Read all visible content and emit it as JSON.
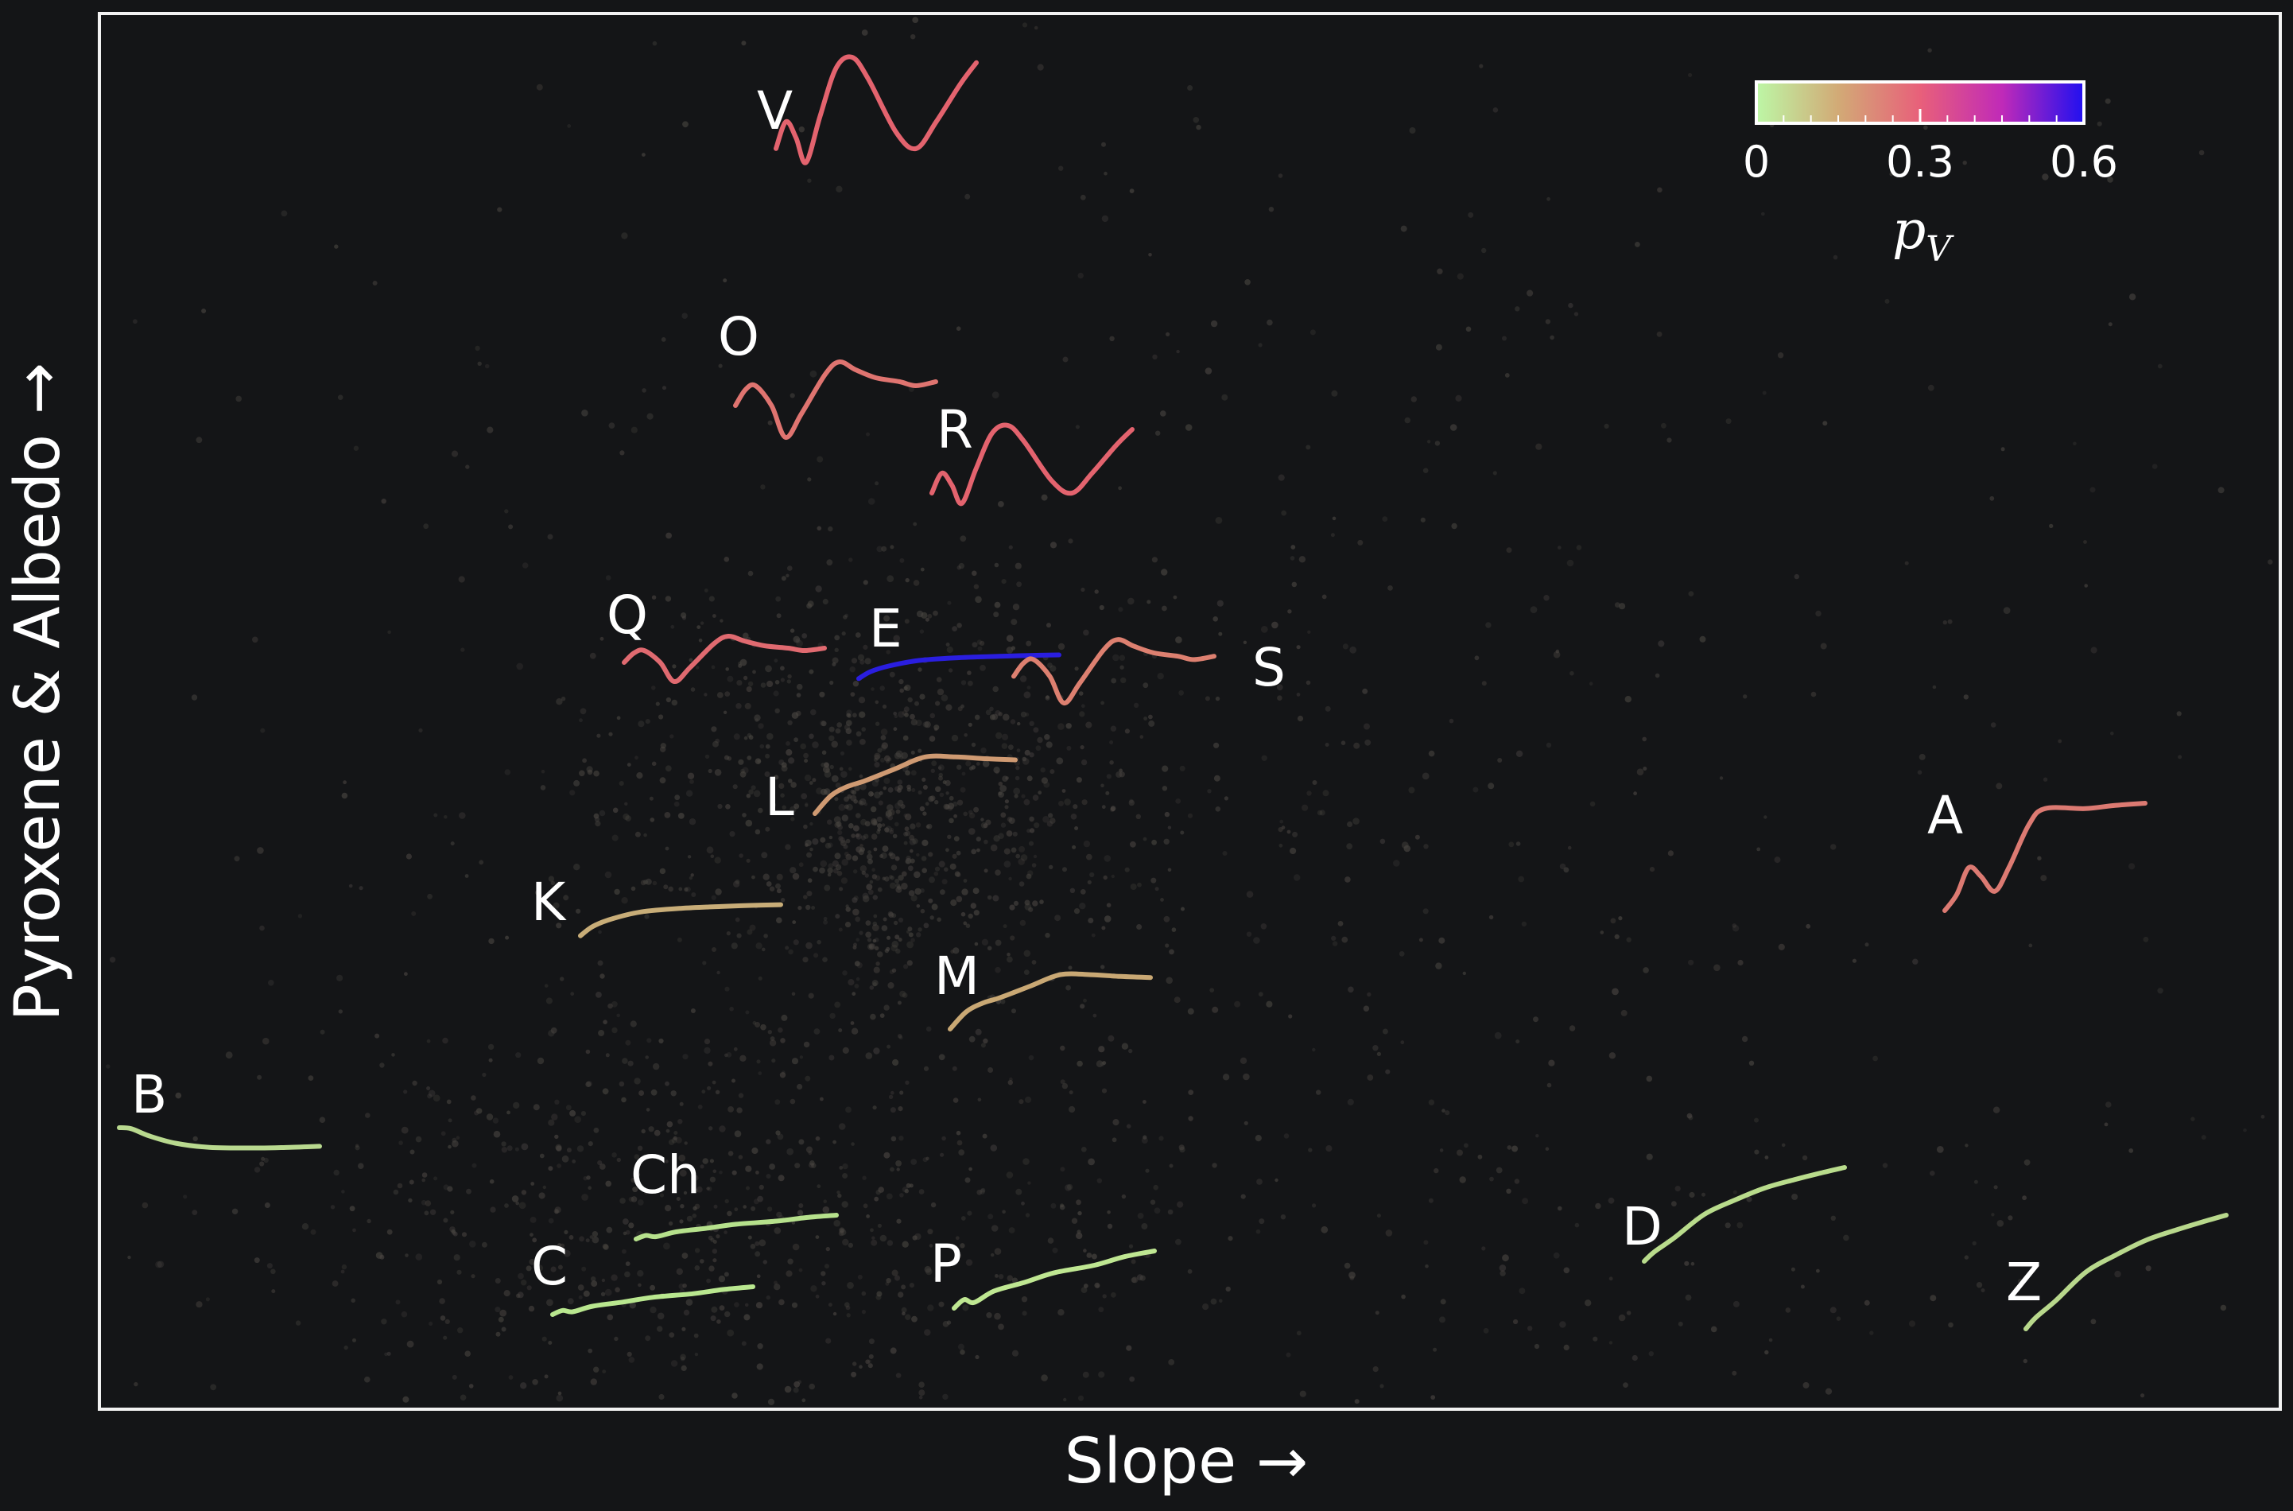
{
  "chart_data": {
    "type": "scatter",
    "title": "",
    "xlabel": "Slope →",
    "ylabel": "Pyroxene & Albedo →",
    "grid": false,
    "ticks": false,
    "colorbar": {
      "label": "p",
      "label_sub": "V",
      "min": 0,
      "max": 0.6,
      "tick_labels": [
        "0",
        "0.3",
        "0.6"
      ],
      "tick_values": [
        0,
        0.3,
        0.6
      ],
      "minor_ticks": [
        0.05,
        0.1,
        0.15,
        0.2,
        0.25,
        0.35,
        0.4,
        0.45,
        0.5,
        0.55
      ],
      "colors": [
        "#bdf7a6",
        "#d2aa76",
        "#e8607a",
        "#c02ab8",
        "#2010f0"
      ],
      "placement": "top-right"
    },
    "background_points_color": "#4a4642",
    "classes": [
      {
        "label": "V",
        "color": "#e3636e",
        "shape": "wave"
      },
      {
        "label": "O",
        "color": "#df7470",
        "shape": "dip"
      },
      {
        "label": "R",
        "color": "#e3636e",
        "shape": "wave"
      },
      {
        "label": "Q",
        "color": "#e06a70",
        "shape": "dip"
      },
      {
        "label": "E",
        "color": "#2a1ee0",
        "shape": "flat"
      },
      {
        "label": "S",
        "color": "#dd8070",
        "shape": "dip"
      },
      {
        "label": "L",
        "color": "#cf9a72",
        "shape": "rise"
      },
      {
        "label": "A",
        "color": "#dc7a72",
        "shape": "step"
      },
      {
        "label": "K",
        "color": "#c8ad78",
        "shape": "flat"
      },
      {
        "label": "M",
        "color": "#c9a874",
        "shape": "rise"
      },
      {
        "label": "B",
        "color": "#b9d98f",
        "shape": "fall"
      },
      {
        "label": "Ch",
        "color": "#b6e18c",
        "shape": "linear"
      },
      {
        "label": "C",
        "color": "#b9e78f",
        "shape": "linear"
      },
      {
        "label": "P",
        "color": "#bfe792",
        "shape": "linear"
      },
      {
        "label": "D",
        "color": "#b9dc8c",
        "shape": "concave"
      },
      {
        "label": "Z",
        "color": "#b8d88c",
        "shape": "concave"
      }
    ]
  }
}
